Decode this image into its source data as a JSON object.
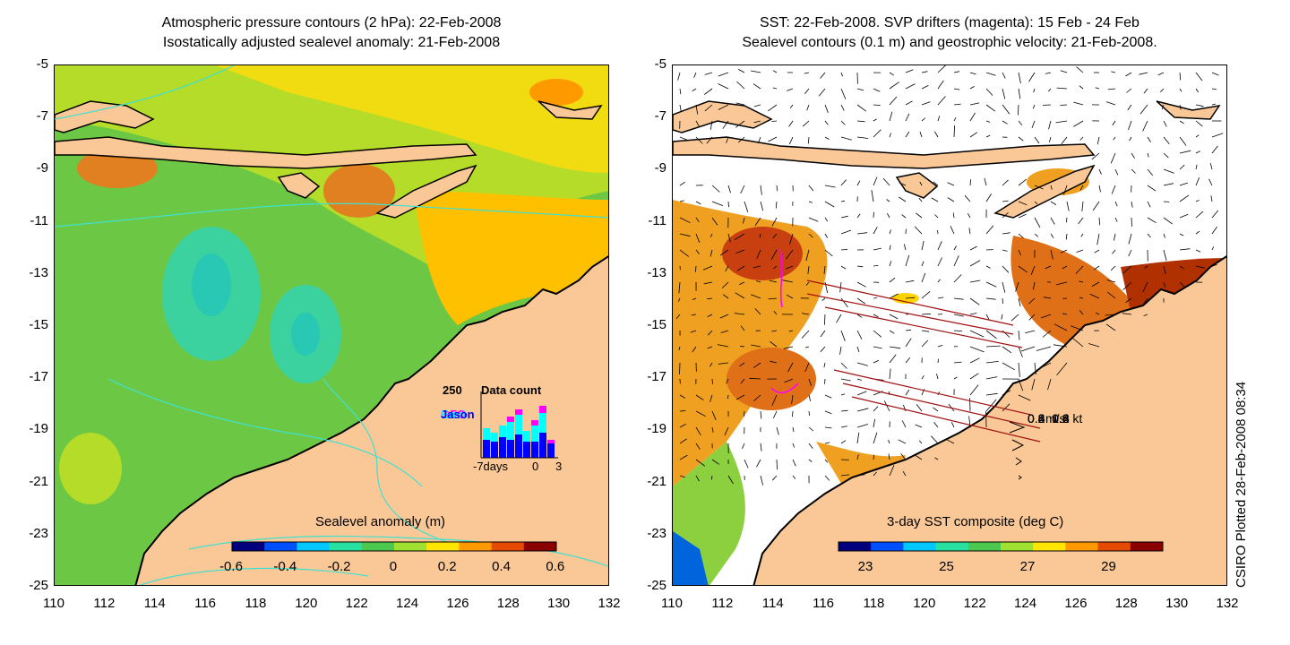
{
  "left_panel": {
    "title_line1": "Atmospheric pressure contours (2 hPa): 22-Feb-2008",
    "title_line2": "Isostatically adjusted sealevel anomaly: 21-Feb-2008",
    "colorbar_label": "Sealevel anomaly (m)",
    "colorbar_ticks": [
      "-0.6",
      "-0.4",
      "-0.2",
      "0",
      "0.2",
      "0.4",
      "0.6"
    ],
    "colorbar_colors": [
      "#00007f",
      "#0050ff",
      "#00c8ff",
      "#28e0a0",
      "#4cc850",
      "#a0e030",
      "#ffe600",
      "#ff9900",
      "#e64a00",
      "#8b0000"
    ],
    "histogram": {
      "max_label": "250",
      "title": "Data count",
      "legend": [
        {
          "name": "GFO",
          "color": "#ff00ff"
        },
        {
          "name": "Envi",
          "color": "#00ffff"
        },
        {
          "name": "Jason",
          "color": "#0000ff"
        }
      ],
      "x_labels": [
        "-7days",
        "0",
        "3"
      ]
    }
  },
  "right_panel": {
    "title_line1": "SST: 22-Feb-2008. SVP drifters (magenta): 15 Feb - 24 Feb",
    "title_line2": "Sealevel contours (0.1 m) and geostrophic velocity: 21-Feb-2008.",
    "colorbar_label": "3-day SST composite (deg C)",
    "colorbar_ticks": [
      "23",
      "25",
      "27",
      "29"
    ],
    "colorbar_colors": [
      "#00007f",
      "#0050ff",
      "#00c8ff",
      "#28e0a0",
      "#4cc850",
      "#a0e030",
      "#ffe600",
      "#ff9900",
      "#e64a00",
      "#8b0000"
    ],
    "speed_legend": {
      "header": "m/s  kt",
      "rows": [
        "0.8  1.6",
        "0.6  1.2",
        "0.4  0.8",
        "0.2  0.4"
      ]
    }
  },
  "axes": {
    "y_ticks": [
      "-5",
      "-7",
      "-9",
      "-11",
      "-13",
      "-15",
      "-17",
      "-19",
      "-21",
      "-23",
      "-25"
    ],
    "x_ticks": [
      "110",
      "112",
      "114",
      "116",
      "118",
      "120",
      "122",
      "124",
      "126",
      "128",
      "130",
      "132"
    ]
  },
  "side_label": "CSIRO Plotted 28-Feb-2008 08:34",
  "colors": {
    "land": "#fac896",
    "ocean_green": "#50c83c",
    "contour_cyan": "#40e0d0",
    "drifter_magenta": "#ff00ff"
  }
}
